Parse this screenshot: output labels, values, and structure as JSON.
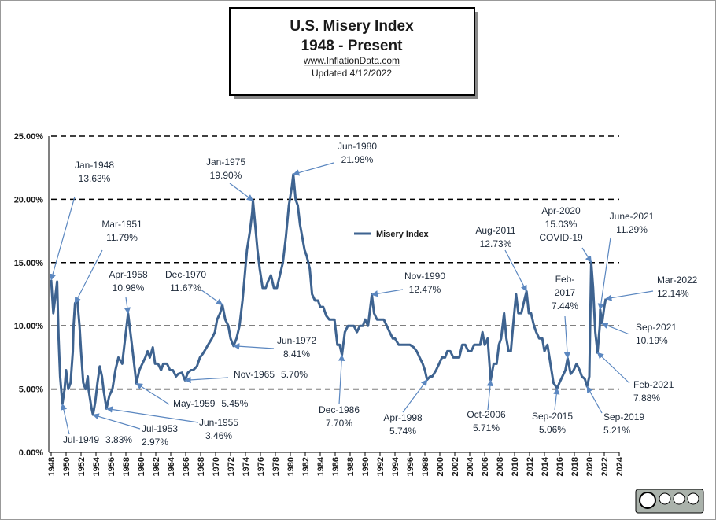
{
  "chart_data": {
    "type": "line",
    "title": "U.S. Misery Index",
    "subtitle": "1948 - Present",
    "source": "www.InflationData.com",
    "updated": "Updated  4/12/2022",
    "legend": "center",
    "grid": true,
    "xlim": [
      1948,
      2024
    ],
    "xticks": [
      1948,
      1950,
      1952,
      1954,
      1956,
      1958,
      1960,
      1962,
      1964,
      1966,
      1968,
      1970,
      1972,
      1974,
      1976,
      1978,
      1980,
      1982,
      1984,
      1986,
      1988,
      1990,
      1992,
      1994,
      1996,
      1998,
      2000,
      2002,
      2004,
      2006,
      2008,
      2010,
      2012,
      2014,
      2016,
      2018,
      2020,
      2022,
      2024
    ],
    "ylim": [
      0,
      25
    ],
    "yticks": [
      {
        "value": 0,
        "label": "0.00%"
      },
      {
        "value": 5,
        "label": "5.00%"
      },
      {
        "value": 10,
        "label": "10.00%"
      },
      {
        "value": 15,
        "label": "15.00%"
      },
      {
        "value": 20,
        "label": "20.00%"
      },
      {
        "value": 25,
        "label": "25.00%"
      }
    ],
    "series": [
      {
        "name": "Misery Index",
        "color": "#3e6390",
        "x": [
          1948.0,
          1948.3,
          1948.6,
          1948.8,
          1949.0,
          1949.2,
          1949.5,
          1949.8,
          1950.0,
          1950.3,
          1950.6,
          1950.9,
          1951.0,
          1951.2,
          1951.5,
          1951.8,
          1952.0,
          1952.3,
          1952.6,
          1952.9,
          1953.0,
          1953.4,
          1953.6,
          1953.9,
          1954.2,
          1954.5,
          1954.8,
          1955.0,
          1955.4,
          1955.8,
          1956.2,
          1956.6,
          1957.0,
          1957.5,
          1957.8,
          1958.0,
          1958.3,
          1958.6,
          1958.9,
          1959.2,
          1959.4,
          1959.8,
          1960.2,
          1960.6,
          1960.9,
          1961.2,
          1961.6,
          1961.9,
          1962.3,
          1962.7,
          1963.0,
          1963.5,
          1963.9,
          1964.3,
          1964.7,
          1965.0,
          1965.5,
          1965.9,
          1966.3,
          1966.7,
          1967.0,
          1967.5,
          1967.9,
          1968.3,
          1968.7,
          1969.0,
          1969.5,
          1969.9,
          1970.2,
          1970.6,
          1970.9,
          1971.3,
          1971.7,
          1972.0,
          1972.4,
          1972.8,
          1973.2,
          1973.6,
          1973.9,
          1974.2,
          1974.6,
          1974.9,
          1975.0,
          1975.3,
          1975.6,
          1975.9,
          1976.3,
          1976.7,
          1977.0,
          1977.4,
          1977.8,
          1978.2,
          1978.6,
          1979.0,
          1979.4,
          1979.8,
          1980.2,
          1980.4,
          1980.7,
          1981.0,
          1981.3,
          1981.6,
          1981.9,
          1982.2,
          1982.6,
          1982.9,
          1983.3,
          1983.7,
          1984.0,
          1984.4,
          1984.8,
          1985.2,
          1985.6,
          1985.9,
          1986.3,
          1986.6,
          1986.9,
          1987.3,
          1987.7,
          1988.0,
          1988.5,
          1988.9,
          1989.3,
          1989.7,
          1990.0,
          1990.4,
          1990.9,
          1991.2,
          1991.6,
          1992.0,
          1992.5,
          1992.9,
          1993.3,
          1993.7,
          1994.0,
          1994.5,
          1994.9,
          1995.3,
          1995.7,
          1996.0,
          1996.5,
          1996.9,
          1997.3,
          1997.7,
          1998.0,
          1998.3,
          1998.7,
          1999.0,
          1999.5,
          1999.9,
          2000.3,
          2000.7,
          2001.0,
          2001.4,
          2001.8,
          2002.2,
          2002.6,
          2003.0,
          2003.4,
          2003.8,
          2004.2,
          2004.6,
          2005.0,
          2005.4,
          2005.7,
          2006.0,
          2006.4,
          2006.8,
          2007.2,
          2007.6,
          2007.9,
          2008.2,
          2008.6,
          2008.9,
          2009.2,
          2009.5,
          2009.8,
          2010.2,
          2010.5,
          2010.9,
          2011.3,
          2011.6,
          2011.9,
          2012.2,
          2012.6,
          2012.9,
          2013.3,
          2013.7,
          2014.0,
          2014.4,
          2014.8,
          2015.2,
          2015.7,
          2016.0,
          2016.4,
          2016.8,
          2017.1,
          2017.5,
          2017.9,
          2018.3,
          2018.7,
          2019.0,
          2019.4,
          2019.7,
          2020.0,
          2020.25,
          2020.5,
          2020.8,
          2021.1,
          2021.4,
          2021.45,
          2021.7,
          2022.0,
          2022.2
        ],
        "values": [
          13.63,
          11,
          12.5,
          13.5,
          9,
          6,
          3.83,
          5,
          6.5,
          5.0,
          5.5,
          8,
          10,
          11.79,
          12,
          10,
          8,
          5.5,
          5,
          6,
          5,
          3.5,
          2.97,
          4,
          5.5,
          6.8,
          6,
          5,
          3.46,
          4.5,
          5,
          6.5,
          7.5,
          7,
          8.5,
          9.5,
          10.98,
          9.5,
          8,
          6.5,
          5.45,
          6.5,
          7,
          7.5,
          8,
          7.5,
          8.3,
          7,
          7,
          6.5,
          7,
          7,
          6.5,
          6.5,
          6.0,
          6.2,
          6.3,
          5.7,
          6.3,
          6.5,
          6.5,
          6.8,
          7.5,
          7.8,
          8.2,
          8.5,
          9,
          9.5,
          10.5,
          11,
          11.67,
          10.5,
          10,
          9,
          8.41,
          9,
          10,
          12,
          14,
          16,
          17.5,
          19,
          19.9,
          18,
          16,
          14.5,
          13,
          13,
          13.5,
          14,
          13,
          13,
          14,
          15,
          17,
          19.5,
          21,
          21.98,
          20,
          19.5,
          18,
          17,
          16,
          15.5,
          14.5,
          12.5,
          12,
          12,
          11.5,
          11.5,
          10.8,
          10.5,
          10.5,
          10.5,
          8.5,
          8.5,
          7.7,
          9.5,
          10,
          10,
          10,
          9.5,
          10,
          10,
          10.5,
          10,
          12.47,
          11,
          10.5,
          10.5,
          10.5,
          10,
          9.5,
          9,
          9,
          8.5,
          8.5,
          8.5,
          8.5,
          8.5,
          8.3,
          8,
          7.5,
          7,
          6.5,
          5.74,
          6,
          6,
          6.5,
          7,
          7.5,
          7.5,
          8,
          8,
          7.5,
          7.5,
          7.5,
          8.5,
          8.5,
          8,
          8,
          8.5,
          8.5,
          8.5,
          9.5,
          8.5,
          9,
          5.71,
          7,
          7,
          8.5,
          9,
          11,
          9,
          8,
          8,
          10,
          12.5,
          11,
          11,
          12,
          12.73,
          11,
          11,
          10,
          9.5,
          9,
          9,
          8,
          8.5,
          7,
          5.5,
          5.06,
          5.5,
          6,
          6.5,
          7.44,
          6.2,
          6.5,
          7,
          6.5,
          6,
          5.8,
          5.21,
          6,
          15.03,
          13,
          9.5,
          7.88,
          10,
          11.29,
          10.19,
          11.5,
          12.14
        ]
      }
    ],
    "annotations": [
      {
        "x": 1948.0,
        "y": 13.63,
        "label": "Jan-1948",
        "value_label": "13.63%"
      },
      {
        "x": 1951.2,
        "y": 11.79,
        "label": "Mar-1951",
        "value_label": "11.79%"
      },
      {
        "x": 1958.3,
        "y": 10.98,
        "label": "Apr-1958",
        "value_label": "10.98%"
      },
      {
        "x": 1970.9,
        "y": 11.67,
        "label": "Dec-1970",
        "value_label": "11.67%"
      },
      {
        "x": 1975.0,
        "y": 19.9,
        "label": "Jan-1975",
        "value_label": "19.90%"
      },
      {
        "x": 1980.4,
        "y": 21.98,
        "label": "Jun-1980",
        "value_label": "21.98%"
      },
      {
        "x": 1972.4,
        "y": 8.41,
        "label": "Jun-1972",
        "value_label": "8.41%"
      },
      {
        "x": 1965.9,
        "y": 5.7,
        "label": "Nov-1965",
        "value_label": "5.70%"
      },
      {
        "x": 1959.4,
        "y": 5.45,
        "label": "May-1959",
        "value_label": "5.45%"
      },
      {
        "x": 1955.4,
        "y": 3.46,
        "label": "Jun-1955",
        "value_label": "3.46%"
      },
      {
        "x": 1953.6,
        "y": 2.97,
        "label": "Jul-1953",
        "value_label": "2.97%"
      },
      {
        "x": 1949.5,
        "y": 3.83,
        "label": "Jul-1949",
        "value_label": "3.83%"
      },
      {
        "x": 1986.9,
        "y": 7.7,
        "label": "Dec-1986",
        "value_label": "7.70%"
      },
      {
        "x": 1990.9,
        "y": 12.47,
        "label": "Nov-1990",
        "value_label": "12.47%"
      },
      {
        "x": 1998.3,
        "y": 5.74,
        "label": "Apr-1998",
        "value_label": "5.74%"
      },
      {
        "x": 2011.6,
        "y": 12.73,
        "label": "Aug-2011",
        "value_label": "12.73%"
      },
      {
        "x": 2006.8,
        "y": 5.71,
        "label": "Oct-2006",
        "value_label": "5.71%"
      },
      {
        "x": 2017.1,
        "y": 7.44,
        "label": [
          "Feb-",
          "2017"
        ],
        "value_label": "7.44%"
      },
      {
        "x": 2015.7,
        "y": 5.06,
        "label": "Sep-2015",
        "value_label": "5.06%"
      },
      {
        "x": 2020.25,
        "y": 15.03,
        "label": "Apr-2020",
        "value_label": "15.03%",
        "note": "COVID-19"
      },
      {
        "x": 2021.45,
        "y": 11.29,
        "label": "June-2021",
        "value_label": "11.29%"
      },
      {
        "x": 2022.2,
        "y": 12.14,
        "label": "Mar-2022",
        "value_label": "12.14%"
      },
      {
        "x": 2021.7,
        "y": 10.19,
        "label": "Sep-2021",
        "value_label": "10.19%"
      },
      {
        "x": 2021.1,
        "y": 7.88,
        "label": "Feb-2021",
        "value_label": "7.88%"
      },
      {
        "x": 2019.7,
        "y": 5.21,
        "label": "Sep-2019",
        "value_label": "5.21%"
      }
    ]
  }
}
